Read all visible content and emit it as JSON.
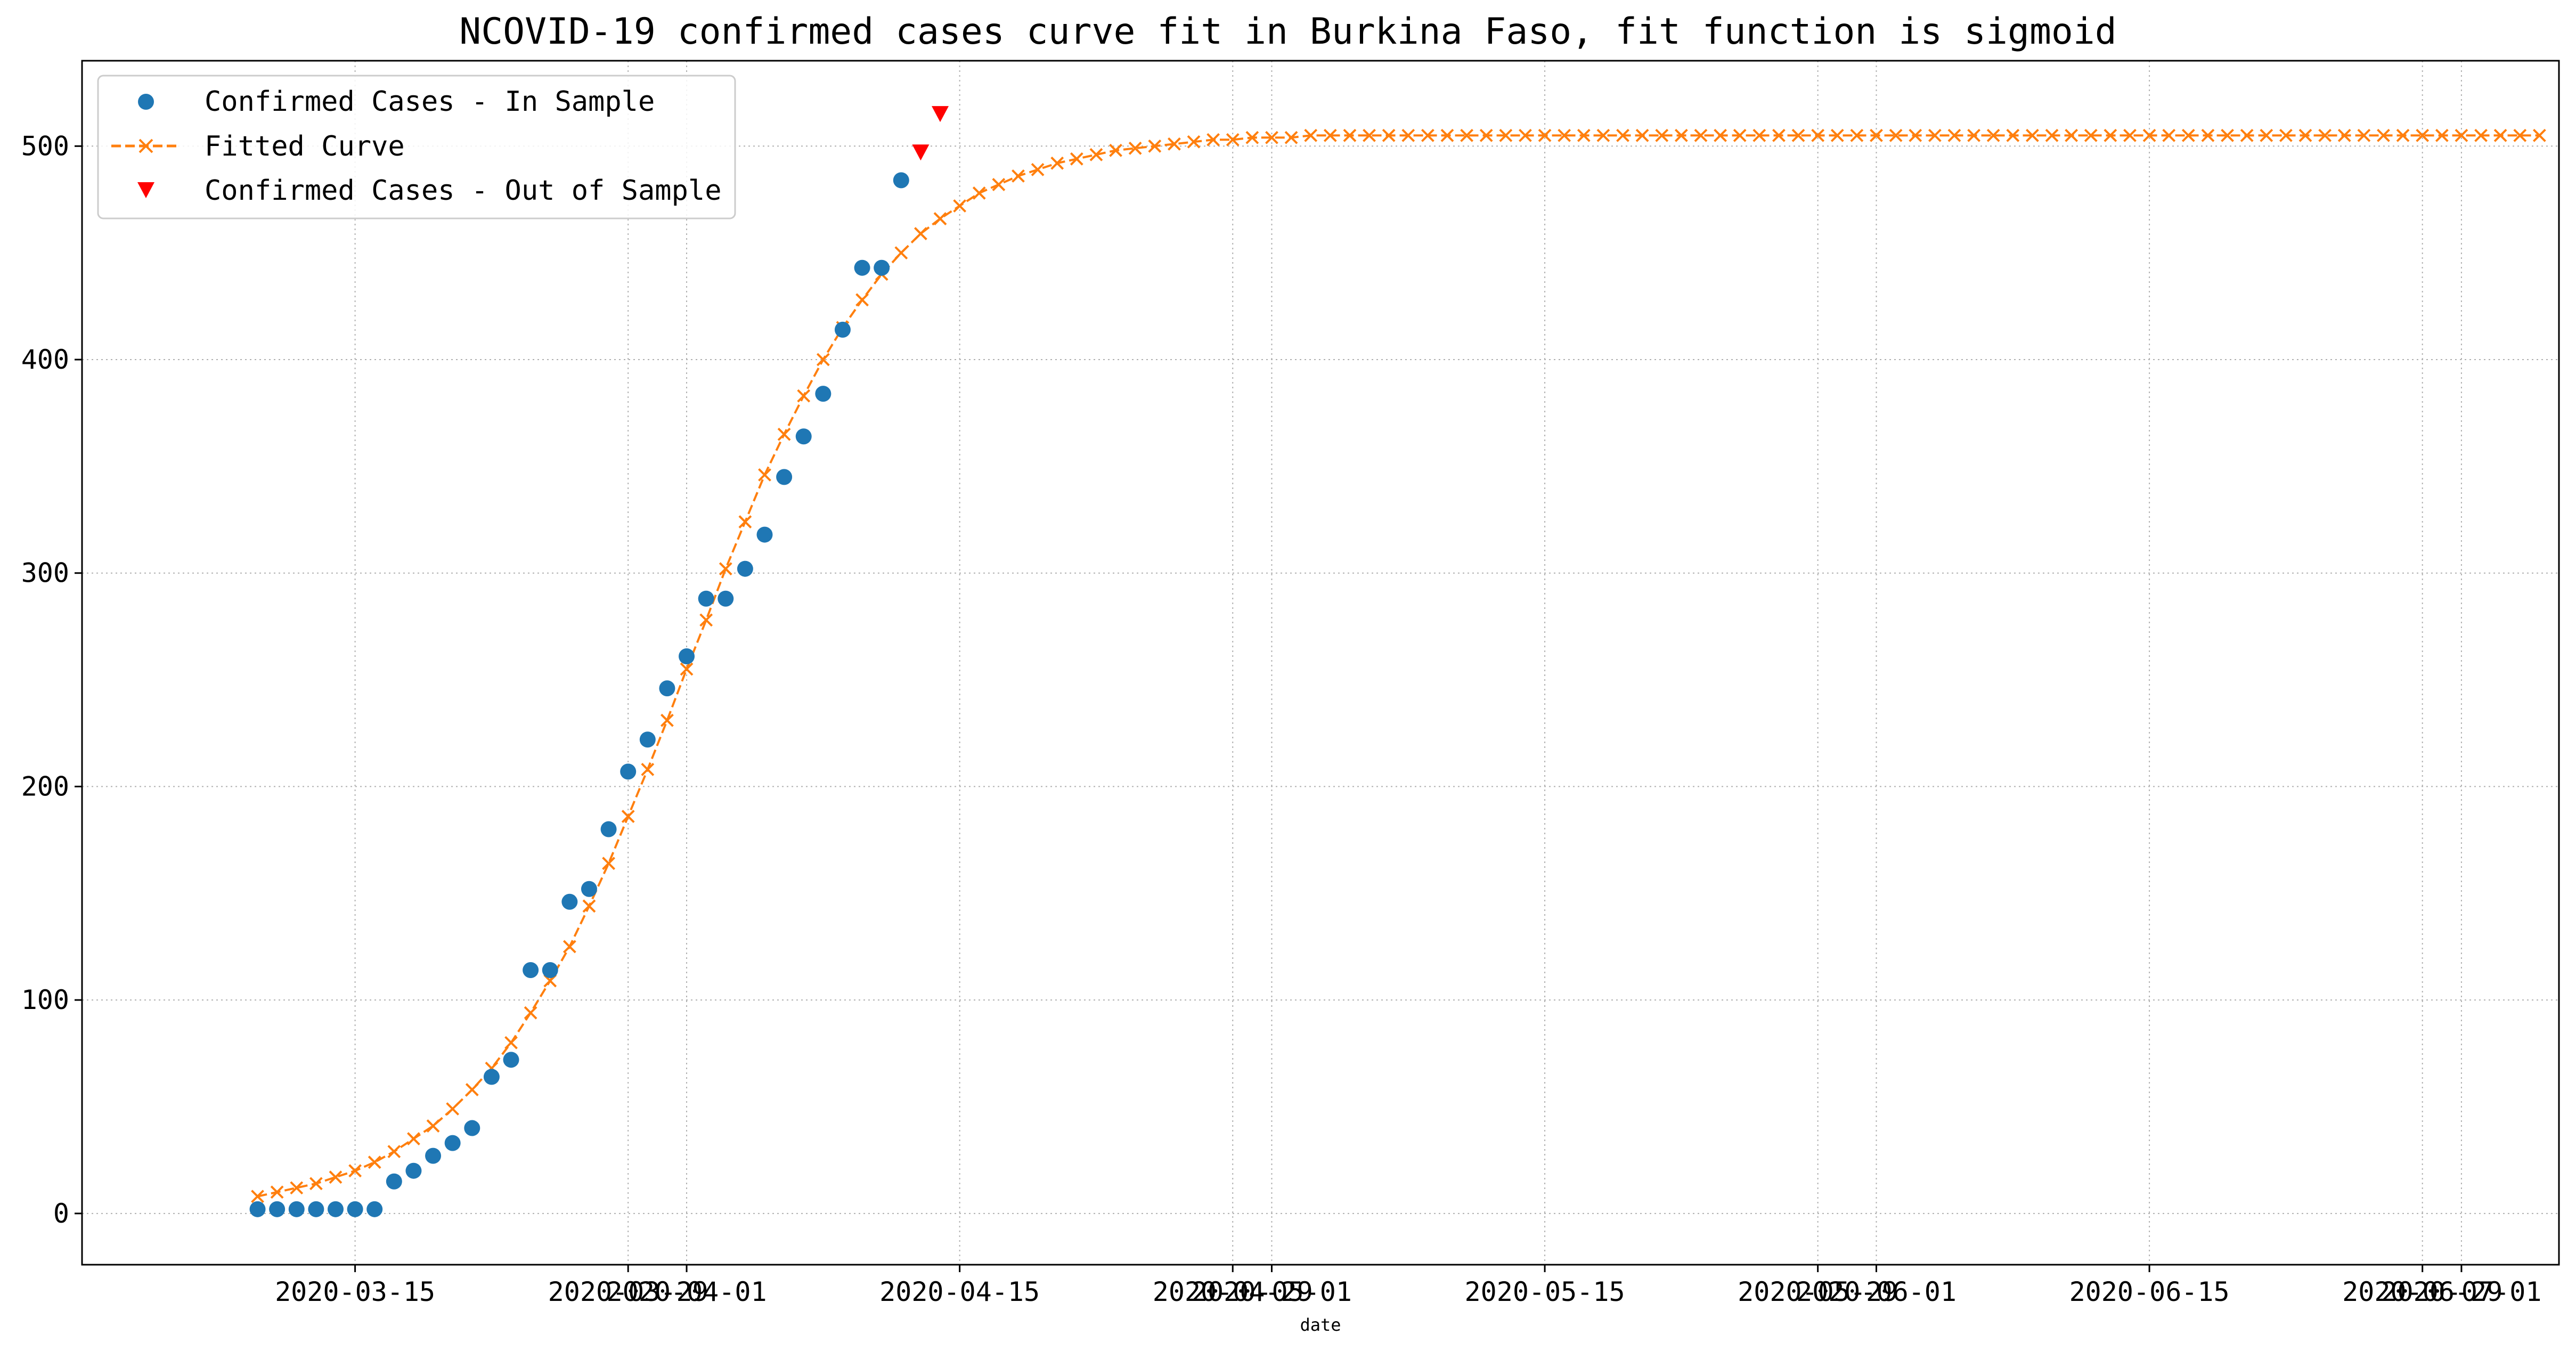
{
  "chart_data": {
    "type": "scatter",
    "title": "NCOVID-19 confirmed cases curve fit in Burkina Faso, fit function is sigmoid",
    "xlabel": "date",
    "ylabel": "",
    "x_type": "date",
    "xlim": [
      "2020-03-01",
      "2020-07-06"
    ],
    "ylim": [
      -24,
      540
    ],
    "xticks": [
      "2020-03-15",
      "2020-03-29",
      "2020-04-01",
      "2020-04-15",
      "2020-04-29",
      "2020-05-01",
      "2020-05-15",
      "2020-05-29",
      "2020-06-01",
      "2020-06-15",
      "2020-06-29",
      "2020-07-01"
    ],
    "yticks": [
      0,
      100,
      200,
      300,
      400,
      500
    ],
    "grid": true,
    "legend_position": "top-left",
    "colors": {
      "in_sample": "#1f77b4",
      "fitted": "#ff7f0e",
      "out_of_sample": "#ff0000"
    },
    "series": [
      {
        "name": "Confirmed Cases - In Sample",
        "marker": "circle",
        "points": [
          [
            "2020-03-10",
            2
          ],
          [
            "2020-03-11",
            2
          ],
          [
            "2020-03-12",
            2
          ],
          [
            "2020-03-13",
            2
          ],
          [
            "2020-03-14",
            2
          ],
          [
            "2020-03-15",
            2
          ],
          [
            "2020-03-16",
            2
          ],
          [
            "2020-03-17",
            15
          ],
          [
            "2020-03-18",
            20
          ],
          [
            "2020-03-19",
            27
          ],
          [
            "2020-03-20",
            33
          ],
          [
            "2020-03-21",
            40
          ],
          [
            "2020-03-22",
            64
          ],
          [
            "2020-03-23",
            72
          ],
          [
            "2020-03-24",
            114
          ],
          [
            "2020-03-25",
            114
          ],
          [
            "2020-03-26",
            146
          ],
          [
            "2020-03-27",
            152
          ],
          [
            "2020-03-28",
            180
          ],
          [
            "2020-03-29",
            207
          ],
          [
            "2020-03-30",
            222
          ],
          [
            "2020-03-31",
            246
          ],
          [
            "2020-04-01",
            261
          ],
          [
            "2020-04-02",
            288
          ],
          [
            "2020-04-03",
            288
          ],
          [
            "2020-04-04",
            302
          ],
          [
            "2020-04-05",
            318
          ],
          [
            "2020-04-06",
            345
          ],
          [
            "2020-04-07",
            364
          ],
          [
            "2020-04-08",
            384
          ],
          [
            "2020-04-09",
            414
          ],
          [
            "2020-04-10",
            443
          ],
          [
            "2020-04-11",
            443
          ],
          [
            "2020-04-12",
            484
          ]
        ]
      },
      {
        "name": "Fitted Curve",
        "marker": "x",
        "line": "dashed",
        "x_start": "2020-03-10",
        "x_end": "2020-07-05",
        "values": [
          8,
          10,
          12,
          14,
          17,
          20,
          24,
          29,
          35,
          41,
          49,
          58,
          68,
          80,
          94,
          109,
          125,
          144,
          164,
          186,
          208,
          231,
          255,
          278,
          302,
          324,
          346,
          365,
          383,
          400,
          415,
          428,
          440,
          450,
          459,
          466,
          472,
          478,
          482,
          486,
          489,
          492,
          494,
          496,
          498,
          499,
          500,
          501,
          502,
          503,
          503,
          504,
          504,
          504,
          505,
          505,
          505,
          505,
          505,
          505,
          505,
          505,
          505,
          505,
          505,
          505,
          505,
          505,
          505,
          505,
          505,
          505,
          505,
          505,
          505,
          505,
          505,
          505,
          505,
          505,
          505,
          505,
          505,
          505,
          505,
          505,
          505,
          505,
          505,
          505,
          505,
          505,
          505,
          505,
          505,
          505,
          505,
          505,
          505,
          505,
          505,
          505,
          505,
          505,
          505,
          505,
          505,
          505,
          505,
          505,
          505,
          505,
          505,
          505,
          505,
          505,
          505,
          505
        ]
      },
      {
        "name": "Confirmed Cases - Out of Sample",
        "marker": "triangle-down",
        "points": [
          [
            "2020-04-13",
            497
          ],
          [
            "2020-04-14",
            515
          ]
        ]
      }
    ]
  }
}
